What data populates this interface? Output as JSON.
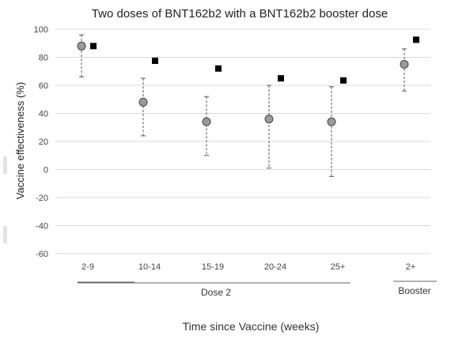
{
  "chart_data": {
    "type": "scatter",
    "title": "Two doses of BNT162b2 with a BNT162b2 booster dose",
    "ylabel": "Vaccine effectiveness (%)",
    "xlabel": "Time since Vaccine (weeks)",
    "ylim": [
      -60,
      100
    ],
    "yticks": [
      100,
      80,
      60,
      40,
      20,
      0,
      -20,
      -40,
      -60
    ],
    "grid": true,
    "categories": [
      "2-9",
      "10-14",
      "15-19",
      "20-24",
      "25+",
      "2+"
    ],
    "groups": [
      {
        "label": "Dose 2",
        "categories": [
          "2-9",
          "10-14",
          "15-19",
          "20-24",
          "25+"
        ]
      },
      {
        "label": "Booster",
        "categories": [
          "2+"
        ]
      }
    ],
    "series": [
      {
        "marker": "circle",
        "color": "#9a9a9a",
        "values": [
          88,
          48,
          34,
          36,
          34,
          75
        ],
        "lower": [
          66,
          24,
          10,
          1,
          -5,
          56
        ],
        "upper": [
          96,
          65,
          52,
          60,
          59,
          86
        ]
      },
      {
        "marker": "square",
        "color": "#000000",
        "values": [
          88,
          77.5,
          72,
          65,
          63.5,
          92.5
        ]
      }
    ]
  }
}
